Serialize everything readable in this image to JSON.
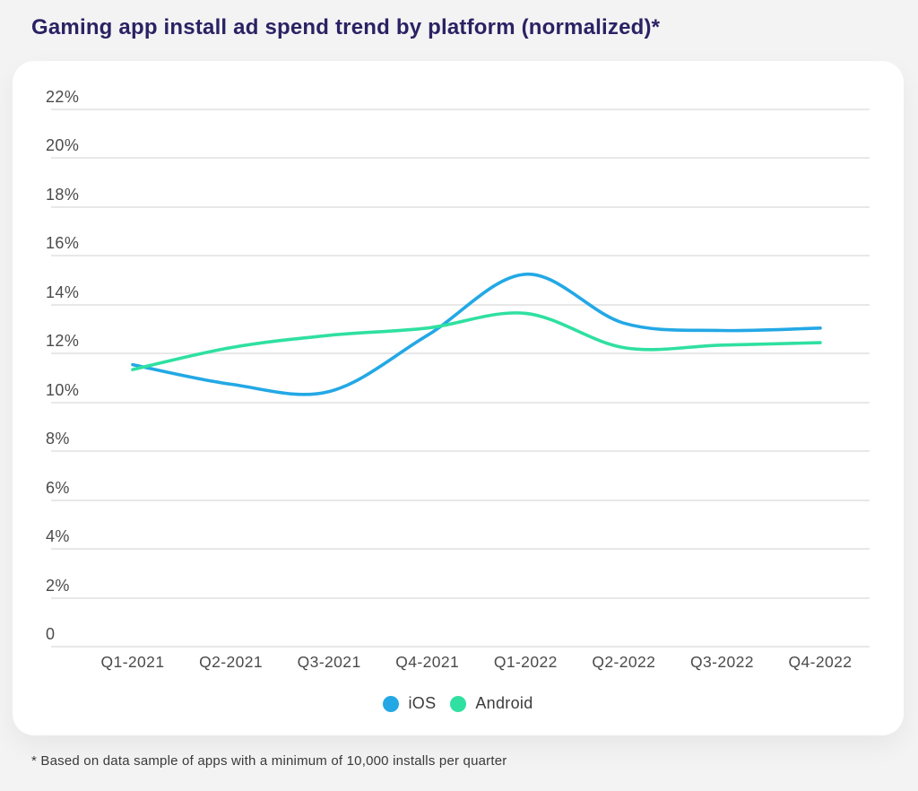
{
  "title": "Gaming app install ad spend trend by platform (normalized)*",
  "footnote": "* Based on data sample of apps with a minimum of 10,000 installs per quarter",
  "colors": {
    "title_text": "#2b2263",
    "ios_line": "#23a8e5",
    "android_line": "#2fe0a0",
    "gridline": "#e8e8e8",
    "axis_text": "#4b4b4b",
    "card_bg": "#ffffff",
    "page_bg": "#f3f3f4"
  },
  "chart_data": {
    "type": "line",
    "title": "Gaming app install ad spend trend by platform (normalized)*",
    "xlabel": "",
    "ylabel": "",
    "grid": "horizontal",
    "legend_position": "bottom-center",
    "ylim": [
      0,
      22
    ],
    "categories": [
      "Q1-2021",
      "Q2-2021",
      "Q3-2021",
      "Q4-2021",
      "Q1-2022",
      "Q2-2022",
      "Q3-2022",
      "Q4-2022"
    ],
    "series": [
      {
        "name": "iOS",
        "color_key": "ios_line",
        "values": [
          11.5,
          10.7,
          10.4,
          12.7,
          15.2,
          13.2,
          12.9,
          13.0
        ]
      },
      {
        "name": "Android",
        "color_key": "android_line",
        "values": [
          11.3,
          12.2,
          12.7,
          13.0,
          13.6,
          12.2,
          12.3,
          12.4
        ]
      }
    ],
    "y_ticks": [
      {
        "label": "22%",
        "value": 22
      },
      {
        "label": "20%",
        "value": 20
      },
      {
        "label": "18%",
        "value": 18
      },
      {
        "label": "16%",
        "value": 16
      },
      {
        "label": "14%",
        "value": 14
      },
      {
        "label": "12%",
        "value": 12
      },
      {
        "label": "10%",
        "value": 10
      },
      {
        "label": "8%",
        "value": 8
      },
      {
        "label": "6%",
        "value": 6
      },
      {
        "label": "4%",
        "value": 4
      },
      {
        "label": "2%",
        "value": 2
      },
      {
        "label": "0",
        "value": 0
      }
    ]
  }
}
